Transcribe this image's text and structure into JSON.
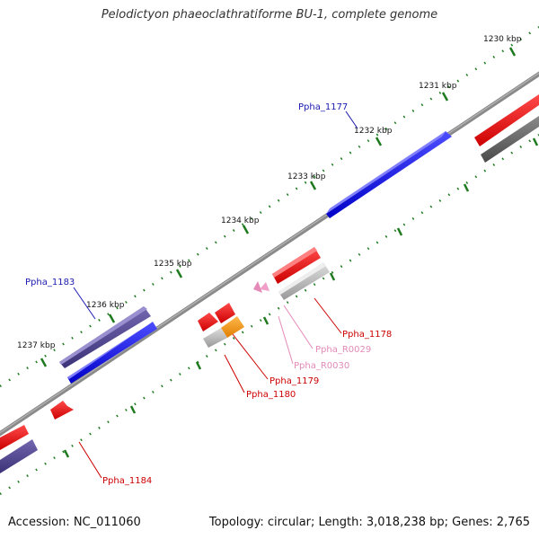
{
  "title": "Pelodictyon phaeoclathratiforme BU-1, complete genome",
  "footer": {
    "accession": "Accession: NC_011060",
    "summary": "Topology: circular; Length: 3,018,238 bp; Genes: 2,765"
  },
  "ticks": [
    "1230 kbp",
    "1231 kbp",
    "1232 kbp",
    "1233 kbp",
    "1234 kbp",
    "1235 kbp",
    "1236 kbp",
    "1237 kbp"
  ],
  "gene_labels": [
    {
      "id": "Ppha_1177",
      "color": "#1a1ab0"
    },
    {
      "id": "Ppha_1183",
      "color": "#1a1ab0"
    },
    {
      "id": "Ppha_1178",
      "color": "#cc0000"
    },
    {
      "id": "Ppha_R0029",
      "color": "#e38ab8"
    },
    {
      "id": "Ppha_R0030",
      "color": "#e38ab8"
    },
    {
      "id": "Ppha_1179",
      "color": "#cc0000"
    },
    {
      "id": "Ppha_1180",
      "color": "#cc0000"
    },
    {
      "id": "Ppha_1184",
      "color": "#cc0000"
    }
  ],
  "colors": {
    "backbone": "#7a7a7a",
    "tick_green": "#1f7a1f",
    "blue_gene": "#0000ee",
    "navy_gene": "#4a3f8c",
    "red_gene": "#ee0000",
    "gray_gene": "#b8b8b8",
    "dark_gray_gene": "#666666",
    "orange_gene": "#ff9900",
    "pink_gene": "#f0a0c8"
  }
}
